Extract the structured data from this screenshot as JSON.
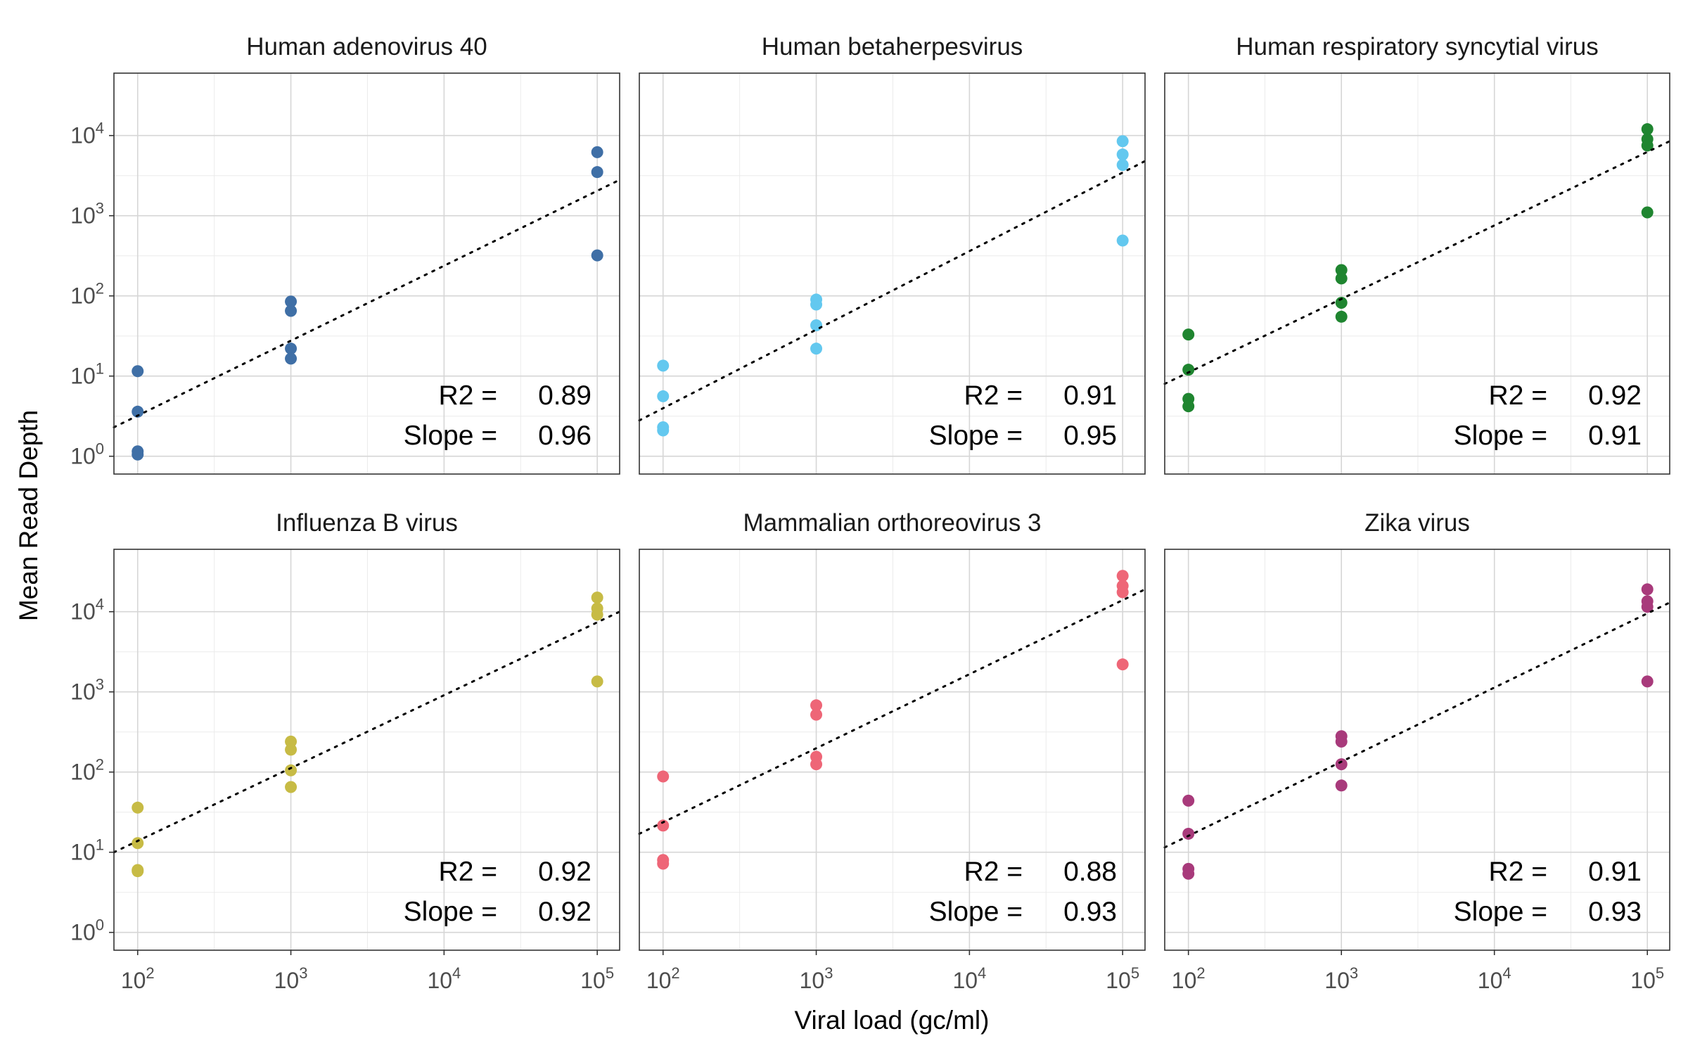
{
  "figure": {
    "xlabel": "Viral load (gc/ml)",
    "ylabel": "Mean Read Depth"
  },
  "chart_data": {
    "type": "scatter",
    "xlabel": "Viral load (gc/ml)",
    "ylabel": "Mean Read Depth",
    "x_scale": "log10",
    "y_scale": "log10",
    "xlim": [
      70,
      140000
    ],
    "ylim": [
      0.6,
      60000
    ],
    "x_ticks": [
      100,
      1000,
      10000,
      100000
    ],
    "y_ticks": [
      1,
      10,
      100,
      1000,
      10000
    ],
    "x_tick_labels": [
      {
        "base": "10",
        "exp": "2"
      },
      {
        "base": "10",
        "exp": "3"
      },
      {
        "base": "10",
        "exp": "4"
      },
      {
        "base": "10",
        "exp": "5"
      }
    ],
    "y_tick_labels": [
      {
        "base": "10",
        "exp": "0"
      },
      {
        "base": "10",
        "exp": "1"
      },
      {
        "base": "10",
        "exp": "2"
      },
      {
        "base": "10",
        "exp": "3"
      },
      {
        "base": "10",
        "exp": "4"
      }
    ],
    "grid": true,
    "trend_line": "dotted",
    "stat_labels": {
      "r2": "R2 =",
      "slope": "Slope ="
    },
    "panels": [
      {
        "title": "Human adenovirus 40",
        "color": "#3F6FA6",
        "r2": "0.89",
        "slope": "0.96",
        "fit": {
          "x_start": 70,
          "y_start": 2.3,
          "x_end": 140000,
          "y_end": 2800
        },
        "points": [
          {
            "x": 100,
            "y": 11.5
          },
          {
            "x": 100,
            "y": 3.6
          },
          {
            "x": 100,
            "y": 1.15
          },
          {
            "x": 100,
            "y": 1.05
          },
          {
            "x": 1000,
            "y": 85
          },
          {
            "x": 1000,
            "y": 65
          },
          {
            "x": 1000,
            "y": 22
          },
          {
            "x": 1000,
            "y": 16.5
          },
          {
            "x": 100000,
            "y": 6200
          },
          {
            "x": 100000,
            "y": 3500
          },
          {
            "x": 100000,
            "y": 320
          }
        ]
      },
      {
        "title": "Human betaherpesvirus",
        "color": "#63C8EF",
        "r2": "0.91",
        "slope": "0.95",
        "fit": {
          "x_start": 70,
          "y_start": 2.8,
          "x_end": 140000,
          "y_end": 4800
        },
        "points": [
          {
            "x": 100,
            "y": 13.5
          },
          {
            "x": 100,
            "y": 5.6
          },
          {
            "x": 100,
            "y": 2.3
          },
          {
            "x": 100,
            "y": 2.1
          },
          {
            "x": 1000,
            "y": 90
          },
          {
            "x": 1000,
            "y": 78
          },
          {
            "x": 1000,
            "y": 43
          },
          {
            "x": 1000,
            "y": 22
          },
          {
            "x": 100000,
            "y": 8500
          },
          {
            "x": 100000,
            "y": 5800
          },
          {
            "x": 100000,
            "y": 4300
          },
          {
            "x": 100000,
            "y": 490
          }
        ]
      },
      {
        "title": "Human respiratory syncytial virus",
        "color": "#1F8530",
        "r2": "0.92",
        "slope": "0.91",
        "fit": {
          "x_start": 70,
          "y_start": 8.0,
          "x_end": 140000,
          "y_end": 8500
        },
        "points": [
          {
            "x": 100,
            "y": 33
          },
          {
            "x": 100,
            "y": 12
          },
          {
            "x": 100,
            "y": 5.2
          },
          {
            "x": 100,
            "y": 4.2
          },
          {
            "x": 1000,
            "y": 210
          },
          {
            "x": 1000,
            "y": 165
          },
          {
            "x": 1000,
            "y": 82
          },
          {
            "x": 1000,
            "y": 55
          },
          {
            "x": 100000,
            "y": 12000
          },
          {
            "x": 100000,
            "y": 9000
          },
          {
            "x": 100000,
            "y": 7500
          },
          {
            "x": 100000,
            "y": 1100
          }
        ]
      },
      {
        "title": "Influenza B virus",
        "color": "#C7BB45",
        "r2": "0.92",
        "slope": "0.92",
        "fit": {
          "x_start": 70,
          "y_start": 10.0,
          "x_end": 140000,
          "y_end": 10000
        },
        "points": [
          {
            "x": 100,
            "y": 36
          },
          {
            "x": 100,
            "y": 13
          },
          {
            "x": 100,
            "y": 6
          },
          {
            "x": 100,
            "y": 5.8
          },
          {
            "x": 1000,
            "y": 240
          },
          {
            "x": 1000,
            "y": 190
          },
          {
            "x": 1000,
            "y": 105
          },
          {
            "x": 1000,
            "y": 65
          },
          {
            "x": 100000,
            "y": 15000
          },
          {
            "x": 100000,
            "y": 11000
          },
          {
            "x": 100000,
            "y": 9200
          },
          {
            "x": 100000,
            "y": 1350
          }
        ]
      },
      {
        "title": "Mammalian orthoreovirus 3",
        "color": "#EE6677",
        "r2": "0.88",
        "slope": "0.93",
        "fit": {
          "x_start": 70,
          "y_start": 17.0,
          "x_end": 140000,
          "y_end": 19000
        },
        "points": [
          {
            "x": 100,
            "y": 88
          },
          {
            "x": 100,
            "y": 21.5
          },
          {
            "x": 100,
            "y": 8
          },
          {
            "x": 100,
            "y": 7.2
          },
          {
            "x": 1000,
            "y": 680
          },
          {
            "x": 1000,
            "y": 520
          },
          {
            "x": 1000,
            "y": 155
          },
          {
            "x": 1000,
            "y": 125
          },
          {
            "x": 100000,
            "y": 28000
          },
          {
            "x": 100000,
            "y": 21000
          },
          {
            "x": 100000,
            "y": 17500
          },
          {
            "x": 100000,
            "y": 2200
          }
        ]
      },
      {
        "title": "Zika virus",
        "color": "#A83A7B",
        "r2": "0.91",
        "slope": "0.93",
        "fit": {
          "x_start": 70,
          "y_start": 11.5,
          "x_end": 140000,
          "y_end": 13000
        },
        "points": [
          {
            "x": 100,
            "y": 44
          },
          {
            "x": 100,
            "y": 17
          },
          {
            "x": 100,
            "y": 6.2
          },
          {
            "x": 100,
            "y": 5.4
          },
          {
            "x": 1000,
            "y": 280
          },
          {
            "x": 1000,
            "y": 240
          },
          {
            "x": 1000,
            "y": 125
          },
          {
            "x": 1000,
            "y": 68
          },
          {
            "x": 100000,
            "y": 19000
          },
          {
            "x": 100000,
            "y": 13500
          },
          {
            "x": 100000,
            "y": 11500
          },
          {
            "x": 100000,
            "y": 1350
          }
        ]
      }
    ]
  }
}
